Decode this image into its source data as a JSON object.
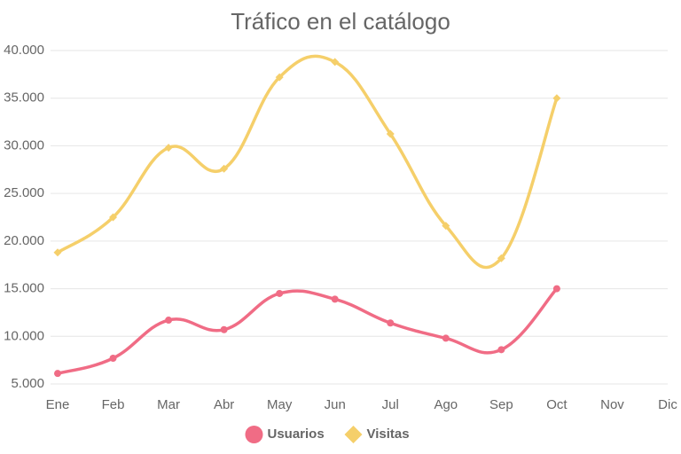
{
  "chart_data": {
    "type": "line",
    "title": "Tráfico en el catálogo",
    "categories": [
      "Ene",
      "Feb",
      "Mar",
      "Abr",
      "May",
      "Jun",
      "Jul",
      "Ago",
      "Sep",
      "Oct",
      "Nov",
      "Dic"
    ],
    "series": [
      {
        "name": "Usuarios",
        "color": "#f06c85",
        "marker": "circle",
        "values": [
          6100,
          7700,
          11700,
          10700,
          14500,
          13900,
          11400,
          9800,
          8600,
          15000,
          null,
          null
        ]
      },
      {
        "name": "Visitas",
        "color": "#f5cf6a",
        "marker": "diamond",
        "values": [
          18800,
          22500,
          29800,
          27600,
          37200,
          38800,
          31250,
          21600,
          18200,
          35000,
          null,
          null
        ]
      }
    ],
    "ylim": [
      5000,
      40000
    ],
    "yticks": [
      {
        "value": 5000,
        "label": "5.000"
      },
      {
        "value": 10000,
        "label": "10.000"
      },
      {
        "value": 15000,
        "label": "15.000"
      },
      {
        "value": 20000,
        "label": "20.000"
      },
      {
        "value": 25000,
        "label": "25.000"
      },
      {
        "value": 30000,
        "label": "30.000"
      },
      {
        "value": 35000,
        "label": "35.000"
      },
      {
        "value": 40000,
        "label": "40.000"
      }
    ],
    "grid": true,
    "legend": "bottom"
  }
}
